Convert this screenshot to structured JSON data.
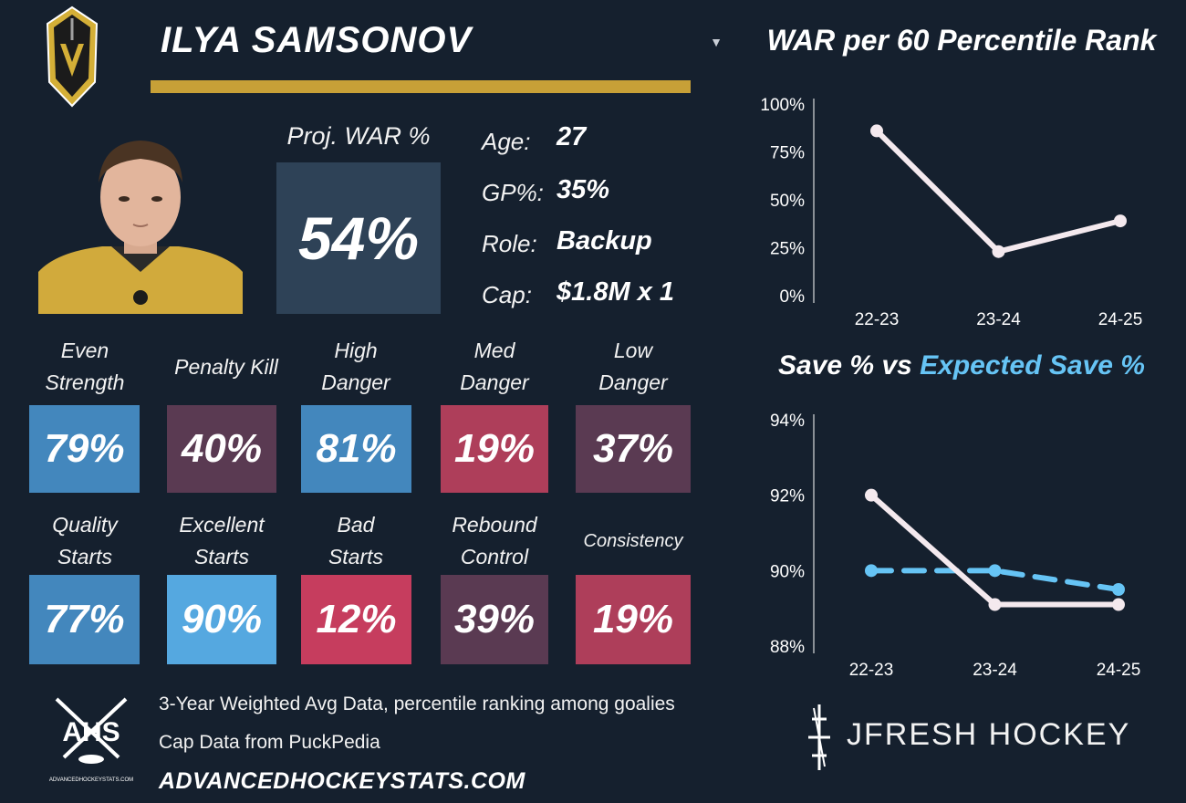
{
  "player": {
    "name": "ILYA SAMSONOV",
    "proj_war_label": "Proj. WAR %",
    "proj_war_value": "54%",
    "info": [
      {
        "label": "Age:",
        "value": "27"
      },
      {
        "label": "GP%:",
        "value": "35%"
      },
      {
        "label": "Role:",
        "value": "Backup"
      },
      {
        "label": "Cap:",
        "value": "$1.8M x 1"
      }
    ]
  },
  "colors": {
    "accent_gold": "#c7a037",
    "tile_blue": "#4387bd",
    "tile_blue_light": "#55a8e0",
    "tile_maroon": "#5a3a52",
    "tile_red": "#ae3e5a",
    "tile_red_bright": "#c63d5e",
    "line_main": "#f4e9ee",
    "line_expected": "#66c4f5"
  },
  "tiles_row1": [
    {
      "label": "Even\nStrength",
      "value": "79%",
      "color": "#4387bd"
    },
    {
      "label": "Penalty Kill",
      "value": "40%",
      "color": "#5a3a52"
    },
    {
      "label": "High\nDanger",
      "value": "81%",
      "color": "#4387bd"
    },
    {
      "label": "Med\nDanger",
      "value": "19%",
      "color": "#ae3e5a"
    },
    {
      "label": "Low\nDanger",
      "value": "37%",
      "color": "#5a3a52"
    }
  ],
  "tiles_row2": [
    {
      "label": "Quality\nStarts",
      "value": "77%",
      "color": "#4387bd"
    },
    {
      "label": "Excellent\nStarts",
      "value": "90%",
      "color": "#55a8e0"
    },
    {
      "label": "Bad\nStarts",
      "value": "12%",
      "color": "#c63d5e"
    },
    {
      "label": "Rebound\nControl",
      "value": "39%",
      "color": "#5a3a52"
    },
    {
      "label": "Consistency",
      "value": "19%",
      "color": "#ae3e5a"
    }
  ],
  "footer": {
    "note1": "3-Year Weighted Avg Data, percentile ranking among goalies",
    "note2": "Cap Data from PuckPedia",
    "site": "ADVANCEDHOCKEYSTATS.COM",
    "ahs_text": "AHS",
    "ahs_small": "ADVANCEDHOCKEYSTATS.COM",
    "brand": "JFRESH HOCKEY"
  },
  "chart_data": [
    {
      "type": "line",
      "title": "WAR per 60 Percentile Rank",
      "x": [
        "22-23",
        "23-24",
        "24-25"
      ],
      "series": [
        {
          "values": [
            86,
            23,
            39
          ]
        }
      ],
      "ylim": [
        0,
        100
      ],
      "yticks": [
        "0%",
        "25%",
        "50%",
        "75%",
        "100%"
      ],
      "ytick_values": [
        0,
        25,
        50,
        75,
        100
      ],
      "grid": false
    },
    {
      "type": "line",
      "title": "Save % vs Expected Save %",
      "title_part1": "Save % vs ",
      "title_part2": "Expected Save %",
      "x": [
        "22-23",
        "23-24",
        "24-25"
      ],
      "series": [
        {
          "name": "Save %",
          "values": [
            92.0,
            89.1,
            89.1
          ]
        },
        {
          "name": "Expected Save %",
          "values": [
            90.0,
            90.0,
            89.5
          ],
          "style": "dashed"
        }
      ],
      "ylim": [
        88,
        94
      ],
      "yticks": [
        "88%",
        "90%",
        "92%",
        "94%"
      ],
      "ytick_values": [
        88,
        90,
        92,
        94
      ],
      "grid": false
    }
  ]
}
